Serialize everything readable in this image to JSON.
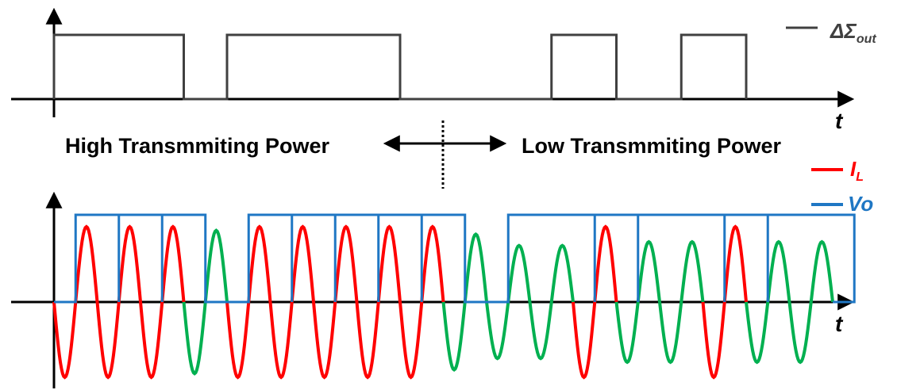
{
  "top_legend": {
    "symbol": "ΔΣ",
    "subscript": "out",
    "color": "#404040"
  },
  "axis_label_top": "t",
  "axis_label_bottom": "t",
  "region_left": "High Transmmiting Power",
  "region_right": "Low Transmmiting Power",
  "legend": {
    "il": {
      "label": "I",
      "subscript": "L",
      "color": "#ff0000"
    },
    "vo": {
      "label": "Vo",
      "color": "#1f77c4"
    }
  },
  "waveform_colors": {
    "active": "#ff0000",
    "idle": "#00b050"
  },
  "pulses": {
    "delta_sigma_high_intervals_periods": [
      [
        0,
        3
      ],
      [
        4,
        8
      ],
      [
        11.5,
        13
      ],
      [
        14.5,
        16
      ]
    ],
    "vo_high_intervals_periods": [
      [
        0.5,
        1.5
      ],
      [
        1.5,
        2.5
      ],
      [
        2.5,
        3.5
      ],
      [
        4.5,
        5.5
      ],
      [
        5.5,
        6.5
      ],
      [
        6.5,
        7.5
      ],
      [
        7.5,
        8.5
      ],
      [
        8.5,
        9.5
      ],
      [
        10.5,
        12.5
      ],
      [
        12.5,
        13.5
      ],
      [
        13.5,
        15.5
      ],
      [
        15.5,
        16.5
      ],
      [
        16.5,
        18.5
      ]
    ],
    "il_active_periods": [
      0,
      1,
      2,
      4,
      5,
      6,
      7,
      8,
      12,
      15
    ],
    "total_periods": 18
  }
}
